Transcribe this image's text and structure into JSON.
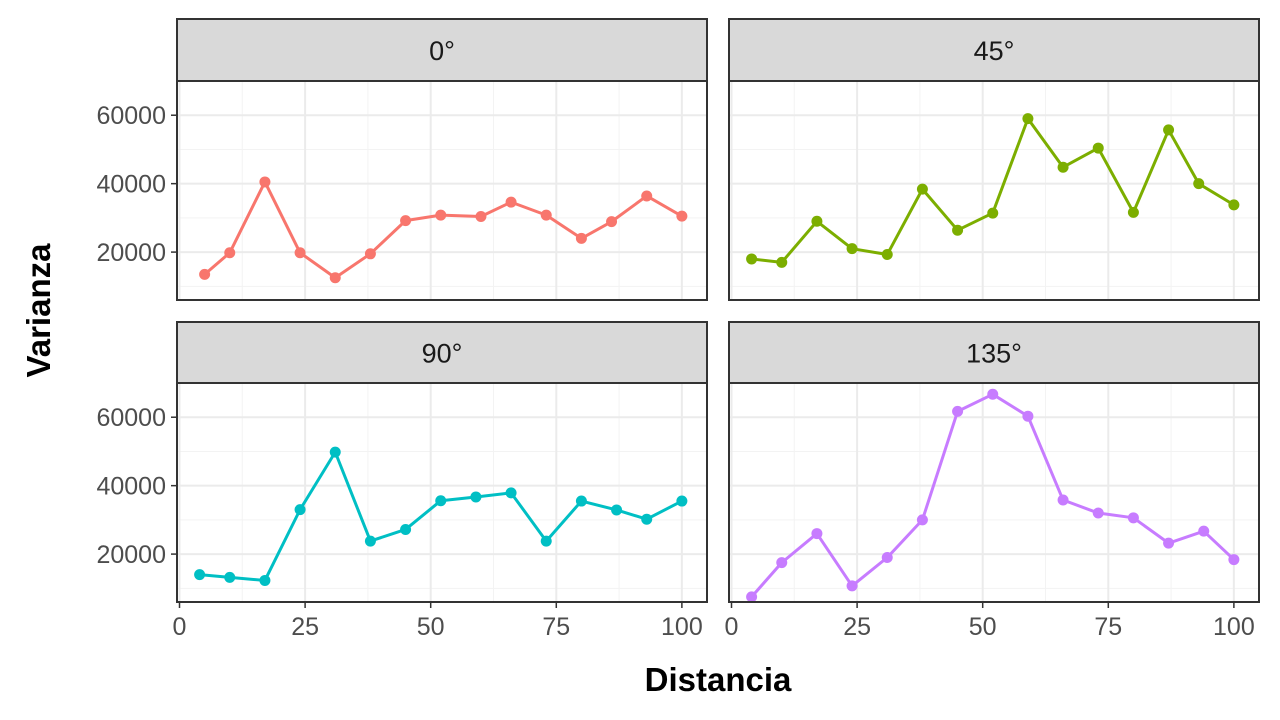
{
  "chart_data": {
    "type": "line",
    "xlabel": "Distancia",
    "ylabel": "Varianza",
    "xlim": [
      -0.5,
      105
    ],
    "ylim": [
      6000,
      70000
    ],
    "x_ticks": [
      0,
      25,
      50,
      75,
      100
    ],
    "x_tick_labels": [
      "0",
      "25",
      "50",
      "75",
      "100"
    ],
    "y_ticks": [
      20000,
      40000,
      60000
    ],
    "y_tick_labels": [
      "20000",
      "40000",
      "60000"
    ],
    "grid": true,
    "legend": "none",
    "panels": [
      {
        "label": "0°",
        "color": "#F8766D",
        "x": [
          5,
          10,
          17,
          24,
          31,
          38,
          45,
          52,
          60,
          66,
          73,
          80,
          86,
          93,
          100
        ],
        "values": [
          13500,
          19800,
          40500,
          19800,
          12500,
          19500,
          29200,
          30800,
          30400,
          34600,
          30800,
          24000,
          28900,
          36400,
          30500
        ]
      },
      {
        "label": "45°",
        "color": "#7CAE00",
        "x": [
          4,
          10,
          17,
          24,
          31,
          38,
          45,
          52,
          59,
          66,
          73,
          80,
          87,
          93,
          100
        ],
        "values": [
          18000,
          17000,
          29000,
          21000,
          19300,
          38400,
          26400,
          31400,
          59000,
          44800,
          50400,
          31600,
          55700,
          40000,
          33800
        ]
      },
      {
        "label": "90°",
        "color": "#00BFC4",
        "x": [
          4,
          10,
          17,
          24,
          31,
          38,
          45,
          52,
          59,
          66,
          73,
          80,
          87,
          93,
          100
        ],
        "values": [
          14000,
          13200,
          12300,
          33000,
          49800,
          23800,
          27200,
          35600,
          36700,
          37900,
          23800,
          35500,
          32900,
          30200,
          35500
        ]
      },
      {
        "label": "135°",
        "color": "#C77CFF",
        "x": [
          4,
          10,
          17,
          24,
          31,
          38,
          45,
          52,
          59,
          66,
          73,
          80,
          87,
          94,
          100
        ],
        "values": [
          7500,
          17500,
          26000,
          10700,
          19000,
          30000,
          61700,
          66700,
          60300,
          35800,
          32000,
          30600,
          23200,
          26700,
          18400
        ]
      }
    ]
  }
}
